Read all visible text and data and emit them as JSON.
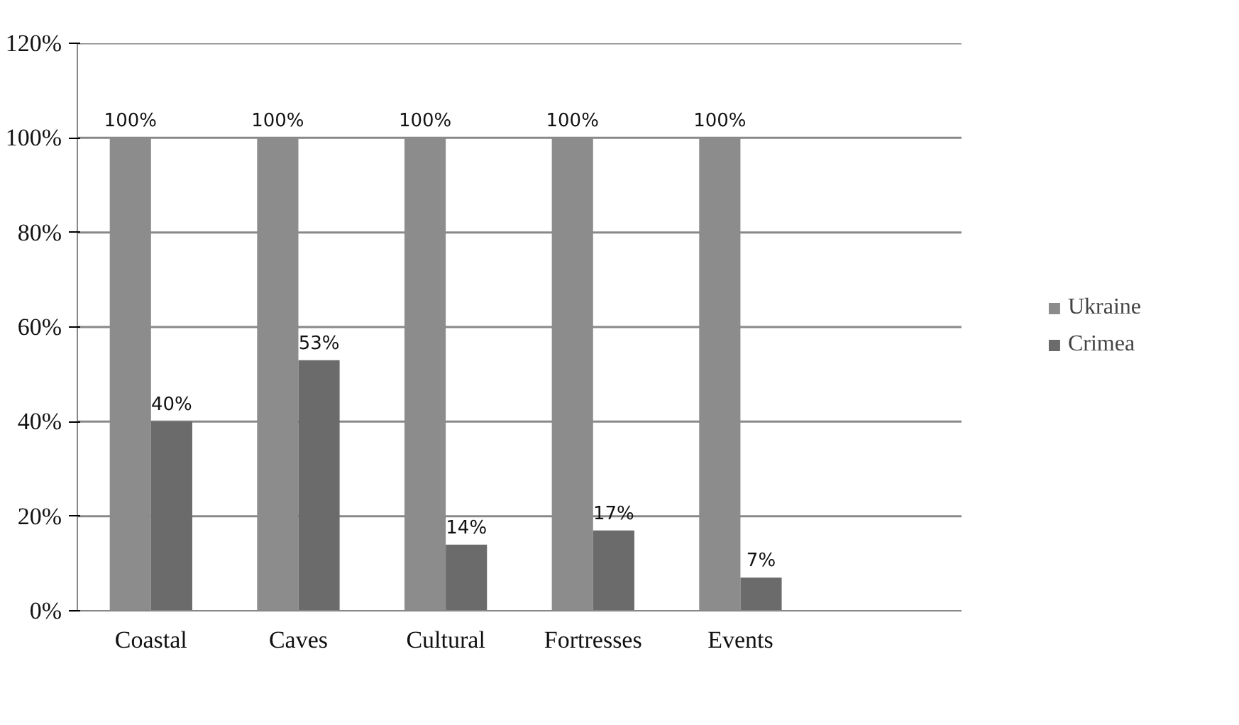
{
  "chart_data": {
    "type": "bar",
    "categories": [
      "Coastal",
      "Caves",
      "Cultural",
      "Fortresses",
      "Events",
      null
    ],
    "series": [
      {
        "name": "Ukraine",
        "color": "#8c8c8c",
        "values": [
          100,
          100,
          100,
          100,
          100,
          null
        ],
        "value_labels": [
          "100%",
          "100%",
          "100%",
          "100%",
          "100%",
          null
        ]
      },
      {
        "name": "Crimea",
        "color": "#6b6b6b",
        "values": [
          40,
          53,
          14,
          17,
          7,
          null
        ],
        "value_labels": [
          "40%",
          "53%",
          "14%",
          "17%",
          "7%",
          null
        ]
      }
    ],
    "ylim": [
      0,
      120
    ],
    "yticks": [
      {
        "value": 0,
        "label": "0%"
      },
      {
        "value": 20,
        "label": "20%"
      },
      {
        "value": 40,
        "label": "40%"
      },
      {
        "value": 60,
        "label": "60%"
      },
      {
        "value": 80,
        "label": "80%"
      },
      {
        "value": 100,
        "label": "100%"
      },
      {
        "value": 120,
        "label": "120%"
      }
    ],
    "grid": "y",
    "legend": "right"
  }
}
